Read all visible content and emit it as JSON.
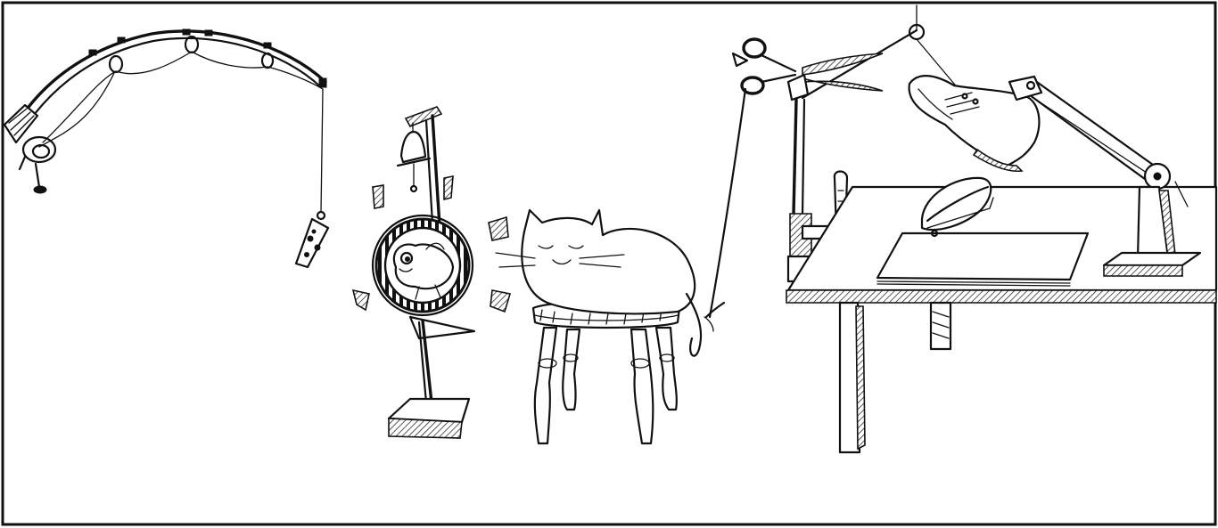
{
  "colors": {
    "ink": "#111111",
    "paper": "#ffffff"
  },
  "scene": {
    "kind": "contraption-illustration",
    "components": [
      "fishing-rod",
      "cheese-bait",
      "bell-post",
      "hamster-wheel",
      "hamster",
      "sleeping-cat",
      "wooden-stool",
      "pulley-string",
      "scissors",
      "boot-lever",
      "stapler",
      "paper-stack",
      "table"
    ]
  }
}
